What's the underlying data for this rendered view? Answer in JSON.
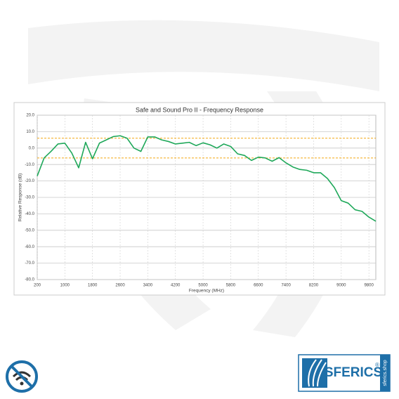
{
  "chart_data": {
    "type": "line",
    "title": "Safe and Sound Pro II - Frequency Response",
    "x_label": "Frequency (MHz)",
    "y_label": "Relative Response (dB)",
    "x": [
      200,
      400,
      600,
      800,
      1000,
      1200,
      1400,
      1600,
      1800,
      2000,
      2200,
      2400,
      2600,
      2800,
      3000,
      3200,
      3400,
      3600,
      3800,
      4000,
      4200,
      4400,
      4600,
      4800,
      5000,
      5200,
      5400,
      5600,
      5800,
      6000,
      6200,
      6400,
      6600,
      6800,
      7000,
      7200,
      7400,
      7600,
      7800,
      8000,
      8200,
      8400,
      8600,
      8800,
      9000,
      9200,
      9400,
      9600,
      9800,
      10000
    ],
    "values": [
      -17,
      -6,
      -2,
      2.5,
      3,
      -3,
      -12,
      3.5,
      -6.5,
      3,
      5,
      7,
      7.5,
      6,
      0,
      -2,
      6.8,
      6.8,
      5,
      4,
      2.5,
      3,
      3.5,
      1.5,
      3.2,
      2,
      0,
      2.5,
      1,
      -3.5,
      -4.5,
      -7.5,
      -5.5,
      -6,
      -8,
      -5.8,
      -9,
      -11.5,
      -13,
      -13.5,
      -15,
      -15,
      -18.5,
      -24,
      -32,
      -33.5,
      -37.5,
      -38.5,
      -42,
      -44.5
    ],
    "color": "#1fa85a",
    "xlim": [
      200,
      10000
    ],
    "xticks": [
      200,
      1000,
      1800,
      2600,
      3400,
      4200,
      5000,
      5800,
      6600,
      7400,
      8200,
      9000,
      9800
    ],
    "ylim": [
      -80,
      20
    ],
    "yticks": [
      {
        "value": -80,
        "label": "-80.0"
      },
      {
        "value": -70,
        "label": "-70.0"
      },
      {
        "value": -60,
        "label": "-60.0"
      },
      {
        "value": -50,
        "label": "-50.0"
      },
      {
        "value": -40,
        "label": "-40.0"
      },
      {
        "value": -30,
        "label": "-30.0"
      },
      {
        "value": -20,
        "label": "-20.0"
      },
      {
        "value": -10,
        "label": "-10.0"
      },
      {
        "value": 0,
        "label": "0.0"
      },
      {
        "value": 10,
        "label": "10.0"
      },
      {
        "value": 20,
        "label": "20.0"
      }
    ],
    "reference_lines": [
      {
        "value": 6,
        "color": "#f3a712"
      },
      {
        "value": -6,
        "color": "#f3a712"
      }
    ],
    "grid": true
  },
  "brand": {
    "name": "SFERICS",
    "registered": "®",
    "url": "sferics.shop"
  }
}
